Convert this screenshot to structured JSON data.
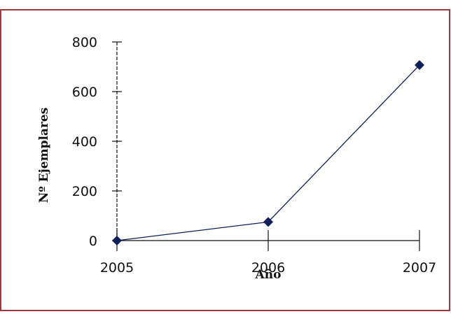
{
  "chart_data": {
    "type": "line",
    "x": [
      "2005",
      "2006",
      "2007"
    ],
    "series": [
      {
        "values": [
          0,
          75,
          707
        ]
      }
    ],
    "xlabel": "Año",
    "ylabel": "Nº Ejemplares",
    "ylim": [
      0,
      800
    ],
    "yticks": [
      0,
      200,
      400,
      600,
      800
    ],
    "grid": false,
    "legend": "none",
    "marker": "diamond",
    "colors": {
      "border": "#a3363a",
      "series": "#0f1f5c",
      "axis": "#111111"
    }
  }
}
